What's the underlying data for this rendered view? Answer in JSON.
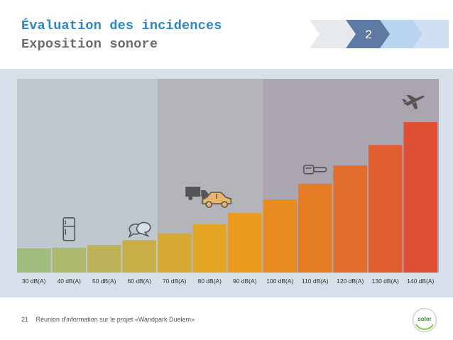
{
  "title": {
    "line1": "Évaluation des incidences",
    "line2": "Exposition sonore"
  },
  "progress": {
    "current_step": "2",
    "colors": {
      "done": "#e6eaee",
      "active": "#5f7aa2",
      "next": "#b9d4ee",
      "later": "#cfe0f2"
    }
  },
  "chart_data": {
    "type": "bar",
    "title": "",
    "xlabel": "",
    "ylabel": "",
    "categories": [
      "30 dB(A)",
      "40 dB(A)",
      "50 dB(A)",
      "60 dB(A)",
      "70 dB(A)",
      "80 dB(A)",
      "90 dB(A)",
      "100 dB(A)",
      "110 dB(A)",
      "120 dB(A)",
      "130 dB(A)",
      "140 dB(A)"
    ],
    "values": [
      30,
      40,
      50,
      60,
      70,
      80,
      90,
      100,
      110,
      120,
      130,
      140
    ],
    "icons": [
      {
        "category": "40 dB(A)",
        "icon": "refrigerator-icon"
      },
      {
        "category": "60 dB(A)",
        "icon": "conversation-icon"
      },
      {
        "category": "80 dB(A)",
        "icon": "truck-icon"
      },
      {
        "category": "80 dB(A)",
        "icon": "car-icon"
      },
      {
        "category": "110 dB(A)",
        "icon": "chainsaw-icon"
      },
      {
        "category": "140 dB(A)",
        "icon": "airplane-icon"
      }
    ],
    "zones": [
      {
        "from": "30 dB(A)",
        "to": "60 dB(A)",
        "color": "#bfc8cf"
      },
      {
        "from": "70 dB(A)",
        "to": "90 dB(A)",
        "color": "#b3b5bb"
      },
      {
        "from": "100 dB(A)",
        "to": "140 dB(A)",
        "color": "#aaa5ae"
      }
    ],
    "color_start": "#9fbd7e",
    "color_mid": "#eba11a",
    "color_end": "#df4f34"
  },
  "footer": {
    "page_number": "21",
    "text": "Réunion d'information sur le projet «Wandpark Duelem»"
  },
  "logo": {
    "text": "soler"
  }
}
